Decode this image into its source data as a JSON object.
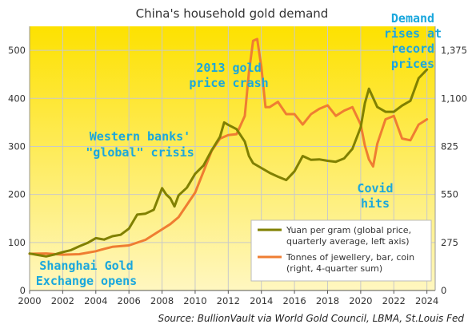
{
  "chart_data": {
    "type": "line",
    "title": "China's household gold demand",
    "xlabel": "",
    "ylabel": "",
    "x_ticks": [
      "2000",
      "2002",
      "2004",
      "2006",
      "2008",
      "2010",
      "2012",
      "2014",
      "2016",
      "2018",
      "2020",
      "2022",
      "2024"
    ],
    "xlim": [
      2000,
      2024.5
    ],
    "ylim_left": [
      0,
      550
    ],
    "y_ticks_left": [
      "0",
      "100",
      "200",
      "300",
      "400",
      "500"
    ],
    "ylim_right": [
      0,
      1512.5
    ],
    "y_ticks_right": [
      "0",
      "275",
      "550",
      "825",
      "1,100",
      "1,375"
    ],
    "grid": true,
    "legend_position": "bottom-right",
    "colors": {
      "background_top": "#fde100",
      "background_bottom": "#fff7c0",
      "gold_line": "#808000",
      "orange_line": "#ef7d32",
      "annotation": "#1aa7dd"
    },
    "series": [
      {
        "name": "Yuan per gram (global price, quarterly average, left axis)",
        "axis": "left",
        "x": [
          2000.0,
          2000.5,
          2001.0,
          2001.5,
          2002.0,
          2002.5,
          2003.0,
          2003.5,
          2004.0,
          2004.5,
          2005.0,
          2005.5,
          2006.0,
          2006.5,
          2007.0,
          2007.5,
          2008.0,
          2008.25,
          2008.5,
          2008.75,
          2009.0,
          2009.5,
          2010.0,
          2010.5,
          2011.0,
          2011.5,
          2011.75,
          2012.0,
          2012.5,
          2013.0,
          2013.25,
          2013.5,
          2014.0,
          2014.5,
          2015.0,
          2015.5,
          2016.0,
          2016.5,
          2017.0,
          2017.5,
          2018.0,
          2018.5,
          2019.0,
          2019.5,
          2020.0,
          2020.25,
          2020.5,
          2021.0,
          2021.5,
          2022.0,
          2022.5,
          2023.0,
          2023.5,
          2024.0
        ],
        "values": [
          77,
          74,
          71,
          75,
          80,
          84,
          92,
          99,
          109,
          106,
          113,
          116,
          129,
          158,
          160,
          168,
          213,
          200,
          192,
          175,
          198,
          214,
          243,
          260,
          292,
          320,
          350,
          345,
          336,
          310,
          280,
          265,
          255,
          245,
          237,
          230,
          248,
          280,
          272,
          273,
          270,
          268,
          275,
          295,
          340,
          390,
          420,
          382,
          372,
          372,
          385,
          395,
          442,
          460
        ]
      },
      {
        "name": "Tonnes of jewellery, bar, coin (right, 4-quarter sum)",
        "axis": "right",
        "x": [
          2000.0,
          2001.0,
          2002.0,
          2003.0,
          2004.0,
          2004.5,
          2005.0,
          2006.0,
          2007.0,
          2008.0,
          2008.5,
          2009.0,
          2010.0,
          2010.5,
          2011.0,
          2011.5,
          2012.0,
          2012.5,
          2013.0,
          2013.25,
          2013.5,
          2013.75,
          2014.0,
          2014.25,
          2014.5,
          2015.0,
          2015.5,
          2016.0,
          2016.5,
          2017.0,
          2017.5,
          2018.0,
          2018.5,
          2019.0,
          2019.5,
          2020.0,
          2020.25,
          2020.5,
          2020.75,
          2021.0,
          2021.5,
          2022.0,
          2022.5,
          2023.0,
          2023.5,
          2024.0
        ],
        "values": [
          210,
          212,
          205,
          208,
          225,
          238,
          250,
          258,
          290,
          350,
          380,
          420,
          560,
          680,
          800,
          870,
          890,
          895,
          1000,
          1250,
          1430,
          1440,
          1280,
          1050,
          1050,
          1080,
          1010,
          1010,
          950,
          1010,
          1040,
          1060,
          1000,
          1030,
          1050,
          950,
          830,
          750,
          710,
          840,
          980,
          1000,
          870,
          860,
          950,
          980
        ]
      }
    ],
    "annotations": [
      {
        "lines": [
          "Demand",
          "rises at",
          "record",
          "prices"
        ]
      },
      {
        "lines": [
          "2013 gold",
          "price crash"
        ]
      },
      {
        "lines": [
          "Western banks'",
          "\"global\" crisis"
        ]
      },
      {
        "lines": [
          "Covid",
          "hits"
        ]
      },
      {
        "lines": [
          "Shanghai Gold",
          "Exchange opens"
        ]
      }
    ],
    "source": "Source: BullionVault via World Gold Council, LBMA, St.Louis Fed"
  }
}
